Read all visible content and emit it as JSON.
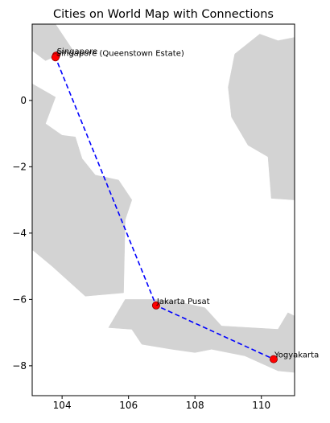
{
  "chart_data": {
    "type": "scatter",
    "title": "Cities on World Map with Connections",
    "xlabel": "",
    "ylabel": "",
    "xlim": [
      103.1,
      111.0
    ],
    "ylim": [
      -8.9,
      2.3
    ],
    "x_ticks": [
      104,
      106,
      108,
      110
    ],
    "y_ticks": [
      0,
      -2,
      -4,
      -6,
      -8
    ],
    "grid": false,
    "legend": "none",
    "colors": {
      "land": "#d3d3d3",
      "point": "#ff0000",
      "point_edge": "#8b0000",
      "connection": "#0000ff"
    },
    "points": [
      {
        "label": "Singapore",
        "x": 103.82,
        "y": 1.35
      },
      {
        "label": "Singapore (Queenstown Estate)",
        "x": 103.8,
        "y": 1.3
      },
      {
        "label": "Jakarta Pusat",
        "x": 106.83,
        "y": -6.18
      },
      {
        "label": "Yogyakarta",
        "x": 110.37,
        "y": -7.8
      }
    ],
    "connection": {
      "style": "dashed",
      "path": [
        0,
        1,
        2,
        3
      ]
    },
    "land_polygons": [
      [
        [
          103.1,
          2.3
        ],
        [
          103.8,
          2.3
        ],
        [
          104.3,
          1.55
        ],
        [
          103.5,
          1.2
        ],
        [
          103.1,
          1.5
        ]
      ],
      [
        [
          103.1,
          0.5
        ],
        [
          103.8,
          0.1
        ],
        [
          103.5,
          -0.7
        ],
        [
          104.0,
          -1.05
        ],
        [
          104.4,
          -1.1
        ],
        [
          104.6,
          -1.75
        ],
        [
          105.0,
          -2.25
        ],
        [
          105.7,
          -2.4
        ],
        [
          106.1,
          -3.0
        ],
        [
          105.9,
          -3.6
        ],
        [
          105.85,
          -5.8
        ],
        [
          104.7,
          -5.9
        ],
        [
          103.7,
          -5.0
        ],
        [
          103.1,
          -4.5
        ]
      ],
      [
        [
          109.2,
          1.4
        ],
        [
          109.95,
          2.0
        ],
        [
          110.5,
          1.8
        ],
        [
          111.0,
          1.9
        ],
        [
          111.0,
          -3.0
        ],
        [
          110.3,
          -2.95
        ],
        [
          110.2,
          -1.7
        ],
        [
          109.6,
          -1.35
        ],
        [
          109.1,
          -0.5
        ],
        [
          109.0,
          0.4
        ]
      ],
      [
        [
          105.4,
          -6.85
        ],
        [
          105.9,
          -6.0
        ],
        [
          106.8,
          -6.0
        ],
        [
          107.4,
          -6.05
        ],
        [
          108.3,
          -6.25
        ],
        [
          108.8,
          -6.8
        ],
        [
          110.5,
          -6.9
        ],
        [
          110.8,
          -6.4
        ],
        [
          111.0,
          -6.5
        ],
        [
          111.0,
          -8.2
        ],
        [
          110.5,
          -8.15
        ],
        [
          109.5,
          -7.7
        ],
        [
          108.5,
          -7.5
        ],
        [
          108.0,
          -7.6
        ],
        [
          107.3,
          -7.5
        ],
        [
          106.4,
          -7.35
        ],
        [
          106.1,
          -6.9
        ]
      ]
    ]
  }
}
